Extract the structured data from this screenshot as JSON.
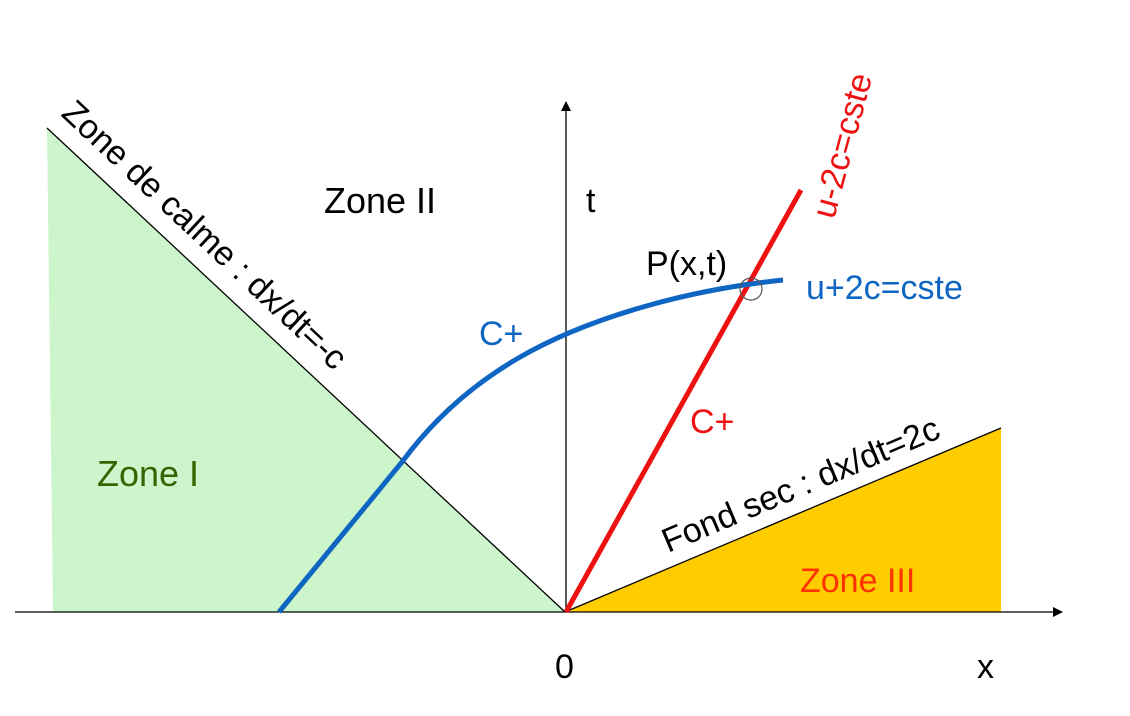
{
  "labels": {
    "zone1": "Zone I",
    "zone2": "Zone II",
    "zone3": "Zone III",
    "calm_line": "Zone de calme : dx/dt=-c",
    "dry_line": "Fond sec : dx/dt=2c",
    "t_axis": "t",
    "x_axis": "x",
    "origin": "0",
    "point": "P(x,t)",
    "c_plus_blue": "C+",
    "c_plus_red": "C+",
    "blue_invariant": "u+2c=cste",
    "red_invariant": "u-2c=cste"
  },
  "colors": {
    "zone1_fill": "#ccf5cc",
    "zone3_fill": "#ffcc00",
    "blue": "#0f66c2",
    "red": "#ee1111",
    "zone1_text": "#336600",
    "zone3_text": "#ff3300",
    "axis": "#000000"
  }
}
